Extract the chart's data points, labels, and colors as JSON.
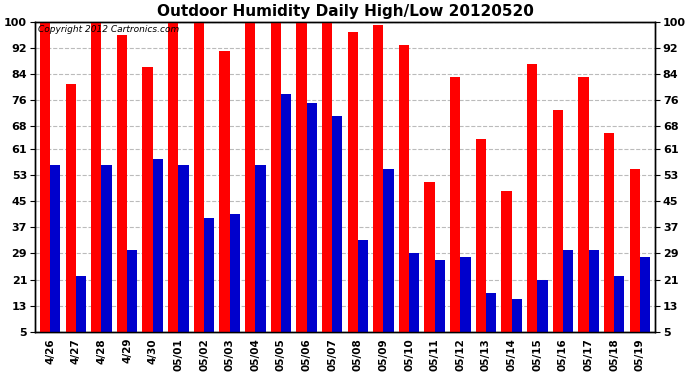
{
  "title": "Outdoor Humidity Daily High/Low 20120520",
  "copyright": "Copyright 2012 Cartronics.com",
  "categories": [
    "4/26",
    "4/27",
    "4/28",
    "4/29",
    "4/30",
    "05/01",
    "05/02",
    "05/03",
    "05/04",
    "05/05",
    "05/06",
    "05/07",
    "05/08",
    "05/09",
    "05/10",
    "05/11",
    "05/12",
    "05/13",
    "05/14",
    "05/15",
    "05/16",
    "05/17",
    "05/18",
    "05/19"
  ],
  "high": [
    100,
    81,
    100,
    96,
    86,
    100,
    100,
    91,
    100,
    100,
    100,
    100,
    97,
    99,
    93,
    51,
    83,
    64,
    48,
    87,
    73,
    83,
    66,
    55
  ],
  "low": [
    56,
    22,
    56,
    30,
    58,
    56,
    40,
    41,
    56,
    78,
    75,
    71,
    33,
    55,
    29,
    27,
    28,
    17,
    15,
    21,
    30,
    30,
    22,
    28
  ],
  "high_color": "#FF0000",
  "low_color": "#0000CC",
  "background_color": "#FFFFFF",
  "plot_bg_color": "#FFFFFF",
  "grid_color": "#BBBBBB",
  "yticks": [
    5,
    13,
    21,
    29,
    37,
    45,
    53,
    61,
    68,
    76,
    84,
    92,
    100
  ],
  "ymin": 5,
  "ymax": 100,
  "title_fontsize": 11,
  "bar_width": 0.4,
  "figsize": [
    6.9,
    3.75
  ],
  "dpi": 100
}
